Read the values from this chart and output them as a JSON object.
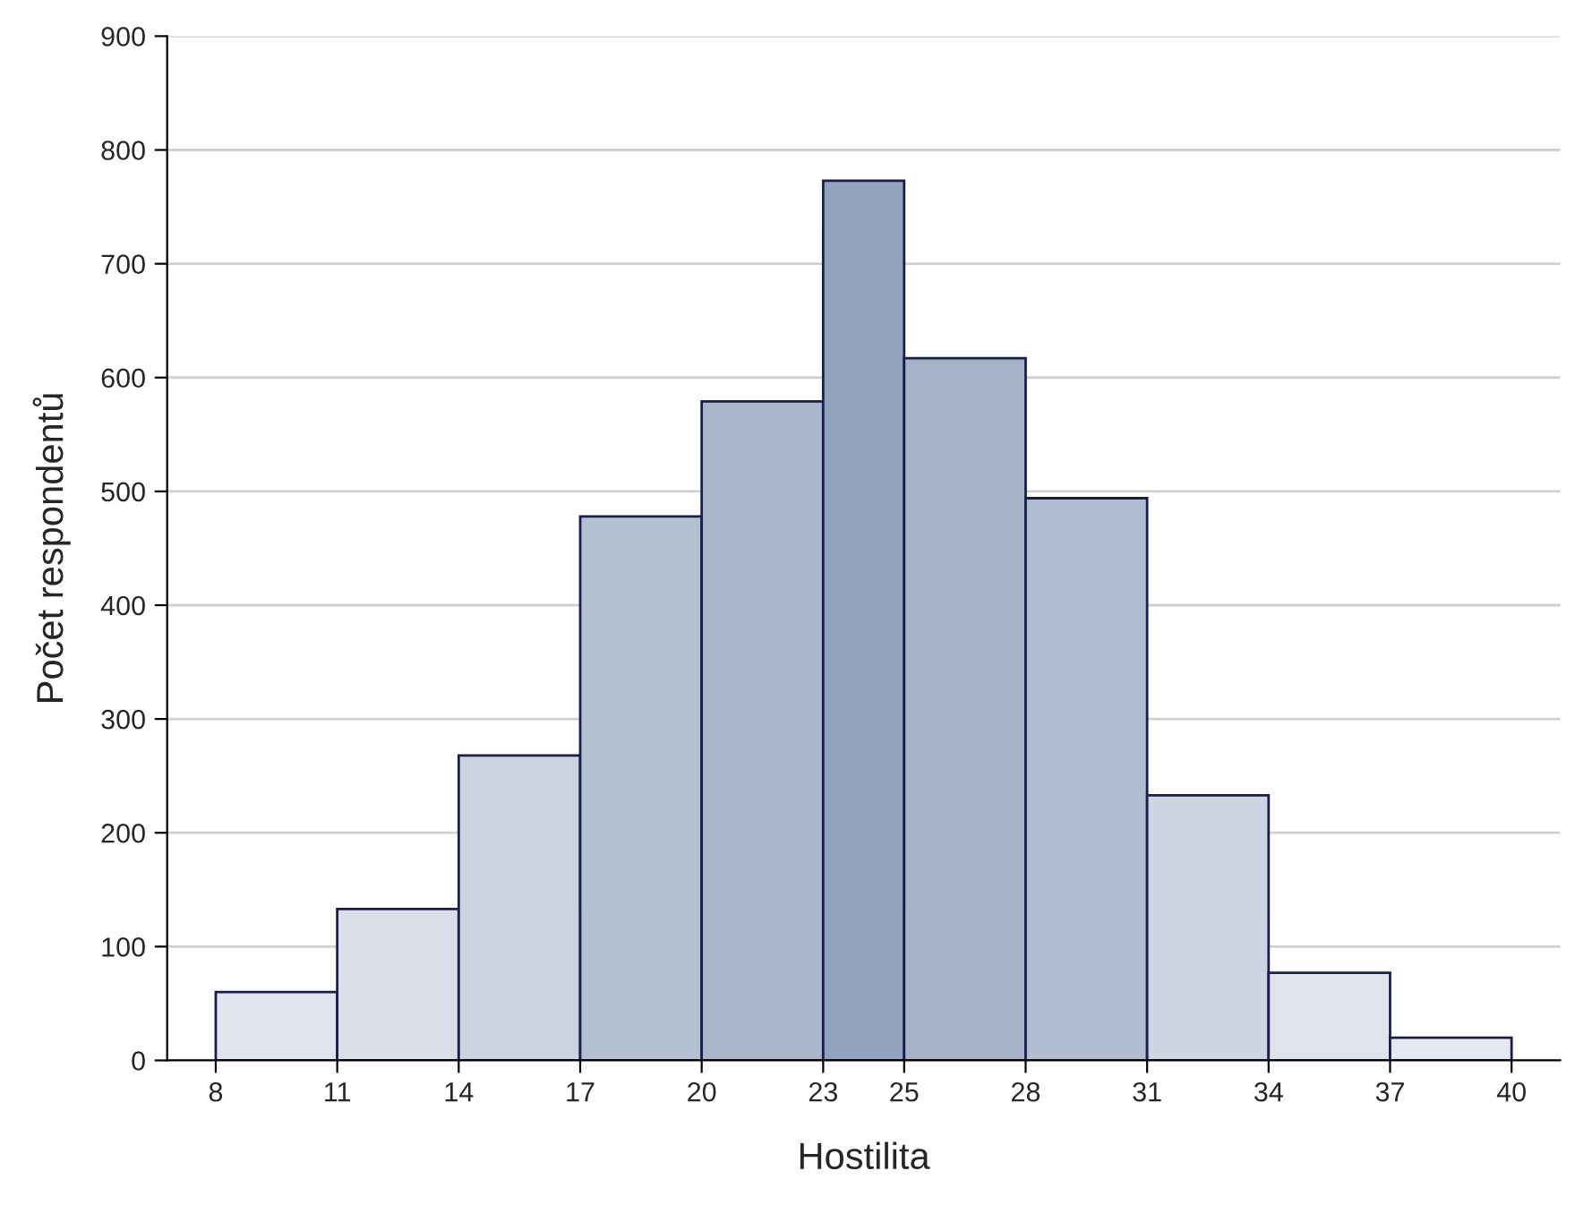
{
  "chart_data": {
    "type": "histogram",
    "xlabel": "Hostilita",
    "ylabel": "Počet respondentů",
    "bins": [
      8,
      11,
      14,
      17,
      20,
      23,
      25,
      28,
      31,
      34,
      37,
      40
    ],
    "values": [
      60,
      133,
      268,
      478,
      579,
      773,
      617,
      494,
      233,
      77,
      20
    ],
    "colors": [
      "#e0e4ed",
      "#d9dee9",
      "#cbd2e0",
      "#b4bfd2",
      "#aab7cb",
      "#91a2bc",
      "#a5b2c8",
      "#b2bdd1",
      "#ced5e2",
      "#dfe3ec",
      "#e4e8f0"
    ],
    "xlim": [
      6.8,
      41.2
    ],
    "xticks": [
      8,
      11,
      14,
      17,
      20,
      23,
      25,
      28,
      31,
      34,
      37,
      40
    ],
    "ylim": [
      0,
      900
    ],
    "yticks": [
      0,
      100,
      200,
      300,
      400,
      500,
      600,
      700,
      800,
      900
    ],
    "grid": "y"
  }
}
